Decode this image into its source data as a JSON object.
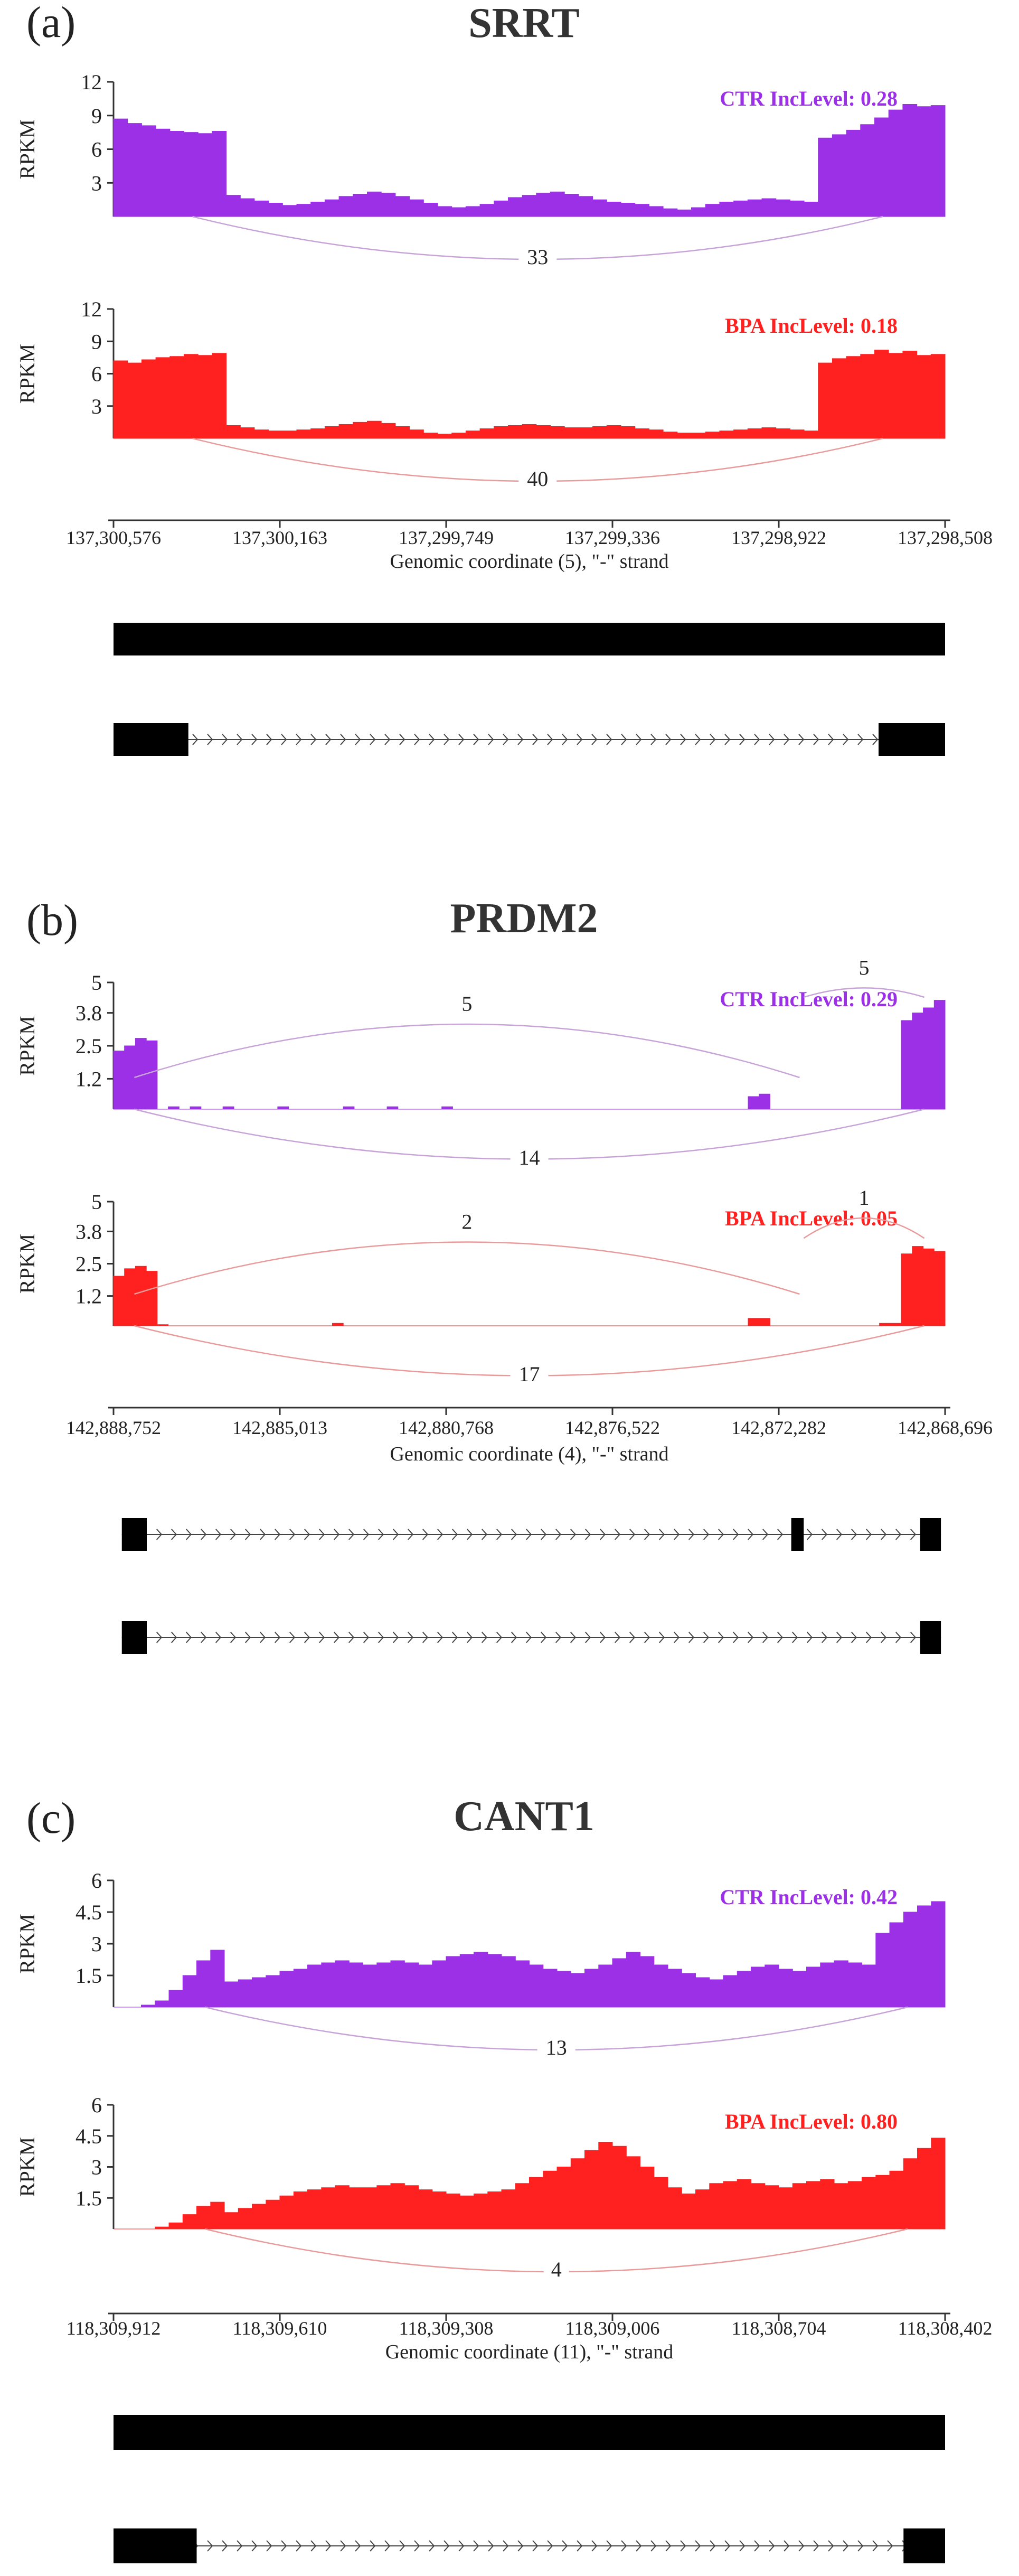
{
  "colors": {
    "ctr": "#9b30e6",
    "bpa": "#ff2020",
    "structure": "#000000",
    "arc": "#c8a3d8",
    "axis": "#333333"
  },
  "y_axis_label": "RPKM",
  "chart_data": [
    {
      "type": "area",
      "letter": "(a)",
      "title": "SRRT",
      "xlabel": "Genomic coordinate (5), \"-\" strand",
      "x_ticks": [
        "137,300,576",
        "137,300,163",
        "137,299,749",
        "137,299,336",
        "137,298,922",
        "137,298,508"
      ],
      "series": [
        {
          "name": "CTR",
          "label": "CTR IncLevel: 0.28",
          "ylim": [
            0,
            12
          ],
          "yticks": [
            "12",
            "9",
            "6",
            "3"
          ],
          "profile": [
            8.7,
            8.3,
            8.1,
            7.8,
            7.6,
            7.5,
            7.4,
            7.6,
            1.9,
            1.6,
            1.4,
            1.2,
            1.0,
            1.1,
            1.3,
            1.5,
            1.8,
            2.0,
            2.2,
            2.1,
            1.8,
            1.5,
            1.2,
            0.9,
            0.8,
            0.9,
            1.1,
            1.4,
            1.7,
            1.9,
            2.1,
            2.2,
            2.0,
            1.8,
            1.5,
            1.3,
            1.2,
            1.1,
            0.9,
            0.7,
            0.6,
            0.8,
            1.1,
            1.3,
            1.4,
            1.5,
            1.6,
            1.5,
            1.4,
            1.3,
            7.0,
            7.3,
            7.7,
            8.2,
            8.8,
            9.5,
            10.0,
            9.8,
            9.9
          ],
          "junctions": [
            {
              "from": 0.095,
              "to": 0.925,
              "count": "33",
              "side": "below"
            }
          ]
        },
        {
          "name": "BPA",
          "label": "BPA IncLevel: 0.18",
          "ylim": [
            0,
            12
          ],
          "yticks": [
            "12",
            "9",
            "6",
            "3"
          ],
          "profile": [
            7.2,
            7.0,
            7.3,
            7.5,
            7.6,
            7.8,
            7.7,
            7.9,
            1.2,
            1.0,
            0.8,
            0.7,
            0.7,
            0.8,
            0.9,
            1.1,
            1.3,
            1.5,
            1.6,
            1.4,
            1.1,
            0.8,
            0.5,
            0.4,
            0.5,
            0.7,
            0.9,
            1.1,
            1.2,
            1.3,
            1.2,
            1.1,
            1.0,
            1.0,
            1.1,
            1.2,
            1.1,
            0.9,
            0.8,
            0.6,
            0.5,
            0.5,
            0.6,
            0.7,
            0.8,
            0.9,
            1.0,
            0.9,
            0.8,
            0.7,
            7.0,
            7.4,
            7.6,
            7.8,
            8.2,
            7.9,
            8.1,
            7.7,
            7.8
          ],
          "junctions": [
            {
              "from": 0.095,
              "to": 0.925,
              "count": "40",
              "side": "below"
            }
          ]
        }
      ],
      "isoforms": [
        {
          "exons": [
            [
              0.0,
              1.0
            ]
          ],
          "intron_marks": false
        },
        {
          "exons": [
            [
              0.0,
              0.09
            ],
            [
              0.92,
              1.0
            ]
          ],
          "intron_marks": true
        }
      ]
    },
    {
      "type": "area",
      "letter": "(b)",
      "title": "PRDM2",
      "xlabel": "Genomic coordinate (4), \"-\" strand",
      "x_ticks": [
        "142,888,752",
        "142,885,013",
        "142,880,768",
        "142,876,522",
        "142,872,282",
        "142,868,696"
      ],
      "series": [
        {
          "name": "CTR",
          "label": "CTR IncLevel: 0.29",
          "ylim": [
            0,
            5
          ],
          "yticks": [
            "5",
            "3.8",
            "2.5",
            "1.2"
          ],
          "profile": [
            2.3,
            2.5,
            2.8,
            2.7,
            0.0,
            0.1,
            0.0,
            0.1,
            0.0,
            0.0,
            0.1,
            0.0,
            0.0,
            0.0,
            0.0,
            0.1,
            0.0,
            0.0,
            0.0,
            0.0,
            0.0,
            0.1,
            0.0,
            0.0,
            0.0,
            0.1,
            0.0,
            0.0,
            0.0,
            0.0,
            0.1,
            0.0,
            0.0,
            0.0,
            0.0,
            0.0,
            0.0,
            0.0,
            0.0,
            0.0,
            0.0,
            0.0,
            0.0,
            0.0,
            0.0,
            0.0,
            0.0,
            0.0,
            0.0,
            0.0,
            0.0,
            0.0,
            0.0,
            0.0,
            0.0,
            0.0,
            0.0,
            0.0,
            0.5,
            0.6,
            0.0,
            0.0,
            0.0,
            0.0,
            0.0,
            0.0,
            0.0,
            0.0,
            0.0,
            0.0,
            0.0,
            0.0,
            3.5,
            3.8,
            4.0,
            4.3
          ],
          "junctions": [
            {
              "from": 0.025,
              "to": 0.825,
              "count": "5",
              "side": "above"
            },
            {
              "from": 0.83,
              "to": 0.975,
              "count": "5",
              "side": "above"
            },
            {
              "from": 0.025,
              "to": 0.975,
              "count": "14",
              "side": "below"
            }
          ]
        },
        {
          "name": "BPA",
          "label": "BPA IncLevel: 0.05",
          "ylim": [
            0,
            5
          ],
          "yticks": [
            "5",
            "3.8",
            "2.5",
            "1.2"
          ],
          "profile": [
            2.0,
            2.3,
            2.4,
            2.2,
            0.05,
            0.0,
            0.0,
            0.0,
            0.0,
            0.0,
            0.0,
            0.0,
            0.0,
            0.0,
            0.0,
            0.0,
            0.0,
            0.0,
            0.0,
            0.0,
            0.1,
            0.0,
            0.0,
            0.0,
            0.0,
            0.0,
            0.0,
            0.0,
            0.0,
            0.0,
            0.0,
            0.0,
            0.0,
            0.0,
            0.0,
            0.0,
            0.0,
            0.0,
            0.0,
            0.0,
            0.0,
            0.0,
            0.0,
            0.0,
            0.0,
            0.0,
            0.0,
            0.0,
            0.0,
            0.0,
            0.0,
            0.0,
            0.0,
            0.0,
            0.0,
            0.0,
            0.0,
            0.0,
            0.3,
            0.3,
            0.0,
            0.0,
            0.0,
            0.0,
            0.0,
            0.0,
            0.0,
            0.0,
            0.0,
            0.0,
            0.1,
            0.1,
            2.9,
            3.2,
            3.1,
            3.0
          ],
          "junctions": [
            {
              "from": 0.025,
              "to": 0.825,
              "count": "2",
              "side": "above"
            },
            {
              "from": 0.83,
              "to": 0.975,
              "count": "1",
              "side": "above"
            },
            {
              "from": 0.025,
              "to": 0.975,
              "count": "17",
              "side": "below"
            }
          ]
        }
      ],
      "isoforms": [
        {
          "exons": [
            [
              0.01,
              0.04
            ],
            [
              0.815,
              0.83
            ],
            [
              0.97,
              0.995
            ]
          ],
          "intron_marks": true
        },
        {
          "exons": [
            [
              0.01,
              0.04
            ],
            [
              0.97,
              0.995
            ]
          ],
          "intron_marks": true
        }
      ]
    },
    {
      "type": "area",
      "letter": "(c)",
      "title": "CANT1",
      "xlabel": "Genomic coordinate (11), \"-\" strand",
      "x_ticks": [
        "118,309,912",
        "118,309,610",
        "118,309,308",
        "118,309,006",
        "118,308,704",
        "118,308,402"
      ],
      "series": [
        {
          "name": "CTR",
          "label": "CTR IncLevel: 0.42",
          "ylim": [
            0,
            6
          ],
          "yticks": [
            "6",
            "4.5",
            "3",
            "1.5"
          ],
          "profile": [
            0.0,
            0.0,
            0.1,
            0.3,
            0.8,
            1.5,
            2.2,
            2.7,
            1.2,
            1.3,
            1.4,
            1.5,
            1.7,
            1.8,
            2.0,
            2.1,
            2.2,
            2.1,
            2.0,
            2.1,
            2.2,
            2.1,
            2.0,
            2.2,
            2.4,
            2.5,
            2.6,
            2.5,
            2.4,
            2.2,
            2.0,
            1.8,
            1.7,
            1.6,
            1.8,
            2.0,
            2.3,
            2.6,
            2.4,
            2.0,
            1.8,
            1.6,
            1.4,
            1.3,
            1.5,
            1.7,
            1.9,
            2.0,
            1.8,
            1.7,
            1.9,
            2.1,
            2.2,
            2.1,
            2.0,
            3.5,
            4.0,
            4.5,
            4.8,
            5.0
          ],
          "junctions": [
            {
              "from": 0.11,
              "to": 0.955,
              "count": "13",
              "side": "below"
            }
          ]
        },
        {
          "name": "BPA",
          "label": "BPA IncLevel: 0.80",
          "ylim": [
            0,
            6
          ],
          "yticks": [
            "6",
            "4.5",
            "3",
            "1.5"
          ],
          "profile": [
            0.0,
            0.0,
            0.0,
            0.1,
            0.3,
            0.7,
            1.1,
            1.3,
            0.8,
            1.0,
            1.2,
            1.4,
            1.6,
            1.8,
            1.9,
            2.0,
            2.1,
            2.0,
            2.0,
            2.1,
            2.2,
            2.1,
            1.9,
            1.8,
            1.7,
            1.6,
            1.7,
            1.8,
            1.9,
            2.2,
            2.5,
            2.8,
            3.0,
            3.4,
            3.8,
            4.2,
            4.0,
            3.5,
            3.0,
            2.5,
            2.0,
            1.7,
            1.9,
            2.2,
            2.3,
            2.4,
            2.2,
            2.1,
            2.0,
            2.2,
            2.3,
            2.4,
            2.2,
            2.3,
            2.5,
            2.6,
            2.8,
            3.4,
            3.9,
            4.4
          ],
          "junctions": [
            {
              "from": 0.11,
              "to": 0.955,
              "count": "4",
              "side": "below"
            }
          ]
        }
      ],
      "isoforms": [
        {
          "exons": [
            [
              0.0,
              1.0
            ]
          ],
          "intron_marks": false
        },
        {
          "exons": [
            [
              0.0,
              0.1
            ],
            [
              0.95,
              1.0
            ]
          ],
          "intron_marks": true
        }
      ]
    }
  ]
}
